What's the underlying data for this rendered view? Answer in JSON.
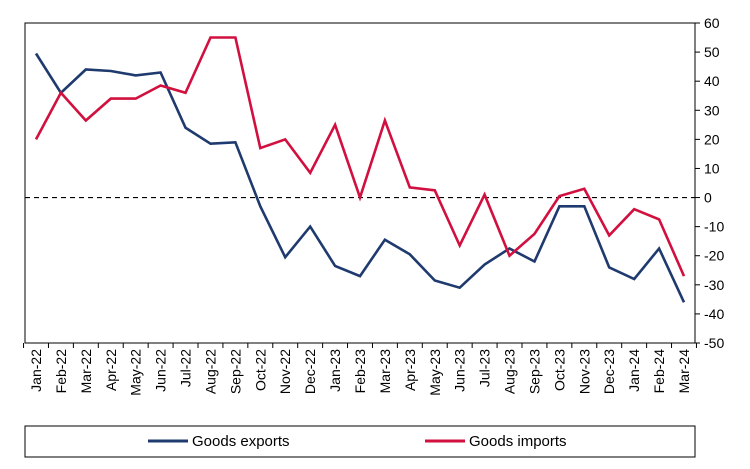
{
  "chart_data": {
    "type": "line",
    "title": "",
    "xlabel": "",
    "ylabel": "",
    "ylim": [
      -50,
      60
    ],
    "yticks": [
      60,
      50,
      40,
      30,
      20,
      10,
      0,
      -10,
      -20,
      -30,
      -40,
      -50
    ],
    "y_axis_side": "right",
    "grid": false,
    "zero_line": "dashed",
    "legend_position": "bottom",
    "categories": [
      "Jan-22",
      "Feb-22",
      "Mar-22",
      "Apr-22",
      "May-22",
      "Jun-22",
      "Jul-22",
      "Aug-22",
      "Sep-22",
      "Oct-22",
      "Nov-22",
      "Dec-22",
      "Jan-23",
      "Feb-23",
      "Mar-23",
      "Apr-23",
      "May-23",
      "Jun-23",
      "Jul-23",
      "Aug-23",
      "Sep-23",
      "Oct-23",
      "Nov-23",
      "Dec-23",
      "Jan-24",
      "Feb-24",
      "Mar-24"
    ],
    "series": [
      {
        "name": "Goods exports",
        "color": "#1f3a6e",
        "values": [
          49.5,
          36,
          44,
          43.5,
          42,
          43,
          24,
          18.5,
          19,
          -3,
          -20.5,
          -10,
          -23.5,
          -27,
          -14.5,
          -19.5,
          -28.5,
          -31,
          -23,
          -17.5,
          -22,
          -3,
          -3,
          -24,
          -28,
          -17.5,
          -36
        ]
      },
      {
        "name": "Goods imports",
        "color": "#d1103f",
        "values": [
          20,
          36,
          26.5,
          34,
          34,
          38.5,
          36,
          55,
          55,
          17,
          20,
          8.5,
          25,
          0,
          26.5,
          3.5,
          2.5,
          -16.5,
          1,
          -20,
          -12.5,
          0.5,
          3,
          -13,
          -4,
          -7.5,
          -27
        ]
      }
    ]
  }
}
